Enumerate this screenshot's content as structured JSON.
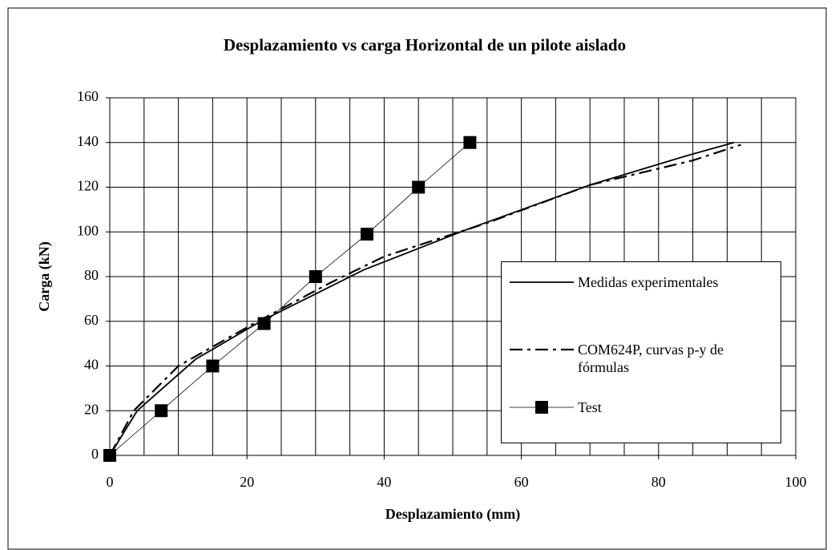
{
  "chart_data": {
    "type": "line",
    "title": "Desplazamiento vs carga Horizontal de un pilote aislado",
    "xlabel": "Desplazamiento (mm)",
    "ylabel": "Carga (kN)",
    "xlim": [
      0,
      100
    ],
    "ylim": [
      0,
      160
    ],
    "xticks": [
      0,
      20,
      40,
      60,
      80,
      100
    ],
    "yticks": [
      0,
      20,
      40,
      60,
      80,
      100,
      120,
      140,
      160
    ],
    "xgrid": [
      0,
      5,
      10,
      15,
      20,
      25,
      30,
      35,
      40,
      45,
      50,
      55,
      60,
      65,
      70,
      75,
      80,
      85,
      90,
      95,
      100
    ],
    "grid": true,
    "legend": "lower right",
    "series": [
      {
        "name": "Medidas experimentales",
        "color": "#000000",
        "style": "solid",
        "x": [
          0,
          4,
          12.5,
          22,
          37,
          52,
          70,
          84,
          91
        ],
        "values": [
          0,
          20,
          43,
          60,
          83,
          101,
          121,
          134,
          140
        ]
      },
      {
        "name": "COM624P, curvas p-y de fórmulas",
        "color": "#000000",
        "style": "dashed",
        "x": [
          0,
          3.5,
          10,
          21,
          32,
          40,
          55,
          70,
          85,
          92
        ],
        "values": [
          0,
          20,
          40,
          59,
          77,
          89,
          104,
          121,
          132,
          139
        ]
      },
      {
        "name": "Test",
        "color": "#000000",
        "style": "marker",
        "x": [
          0,
          7.5,
          15,
          22.5,
          30,
          37.5,
          45,
          52.5
        ],
        "values": [
          0,
          20,
          40,
          59,
          80,
          99,
          120,
          140
        ]
      }
    ]
  }
}
